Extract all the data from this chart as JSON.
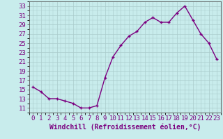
{
  "x": [
    0,
    1,
    2,
    3,
    4,
    5,
    6,
    7,
    8,
    9,
    10,
    11,
    12,
    13,
    14,
    15,
    16,
    17,
    18,
    19,
    20,
    21,
    22,
    23
  ],
  "y": [
    15.5,
    14.5,
    13.0,
    13.0,
    12.5,
    12.0,
    11.0,
    11.0,
    11.5,
    17.5,
    22.0,
    24.5,
    26.5,
    27.5,
    29.5,
    30.5,
    29.5,
    29.5,
    31.5,
    33.0,
    30.0,
    27.0,
    25.0,
    21.5
  ],
  "line_color": "#7b0080",
  "marker": "+",
  "bg_color": "#c8ecec",
  "grid_color": "#aacccc",
  "xlabel": "Windchill (Refroidissement éolien,°C)",
  "xlim": [
    -0.5,
    23.5
  ],
  "ylim": [
    10.0,
    34.0
  ],
  "yticks": [
    11,
    13,
    15,
    17,
    19,
    21,
    23,
    25,
    27,
    29,
    31,
    33
  ],
  "xticks": [
    0,
    1,
    2,
    3,
    4,
    5,
    6,
    7,
    8,
    9,
    10,
    11,
    12,
    13,
    14,
    15,
    16,
    17,
    18,
    19,
    20,
    21,
    22,
    23
  ],
  "tick_fontsize": 6.5,
  "xlabel_fontsize": 7.0,
  "line_width": 1.0,
  "marker_size": 3.5,
  "marker_ew": 1.0
}
